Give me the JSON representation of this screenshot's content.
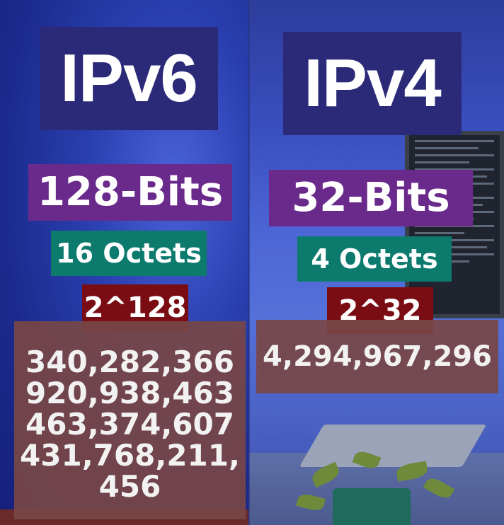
{
  "ipv6": {
    "title": "IPv6",
    "bits": "128-Bits",
    "octets": "16 Octets",
    "power": "2^128",
    "address_count_lines": [
      "340,282,366",
      "920,938,463",
      "463,374,607",
      "431,768,211,",
      "456"
    ]
  },
  "ipv4": {
    "title": "IPv4",
    "bits": "32-Bits",
    "octets": "4 Octets",
    "power": "2^32",
    "address_count": "4,294,967,296"
  }
}
